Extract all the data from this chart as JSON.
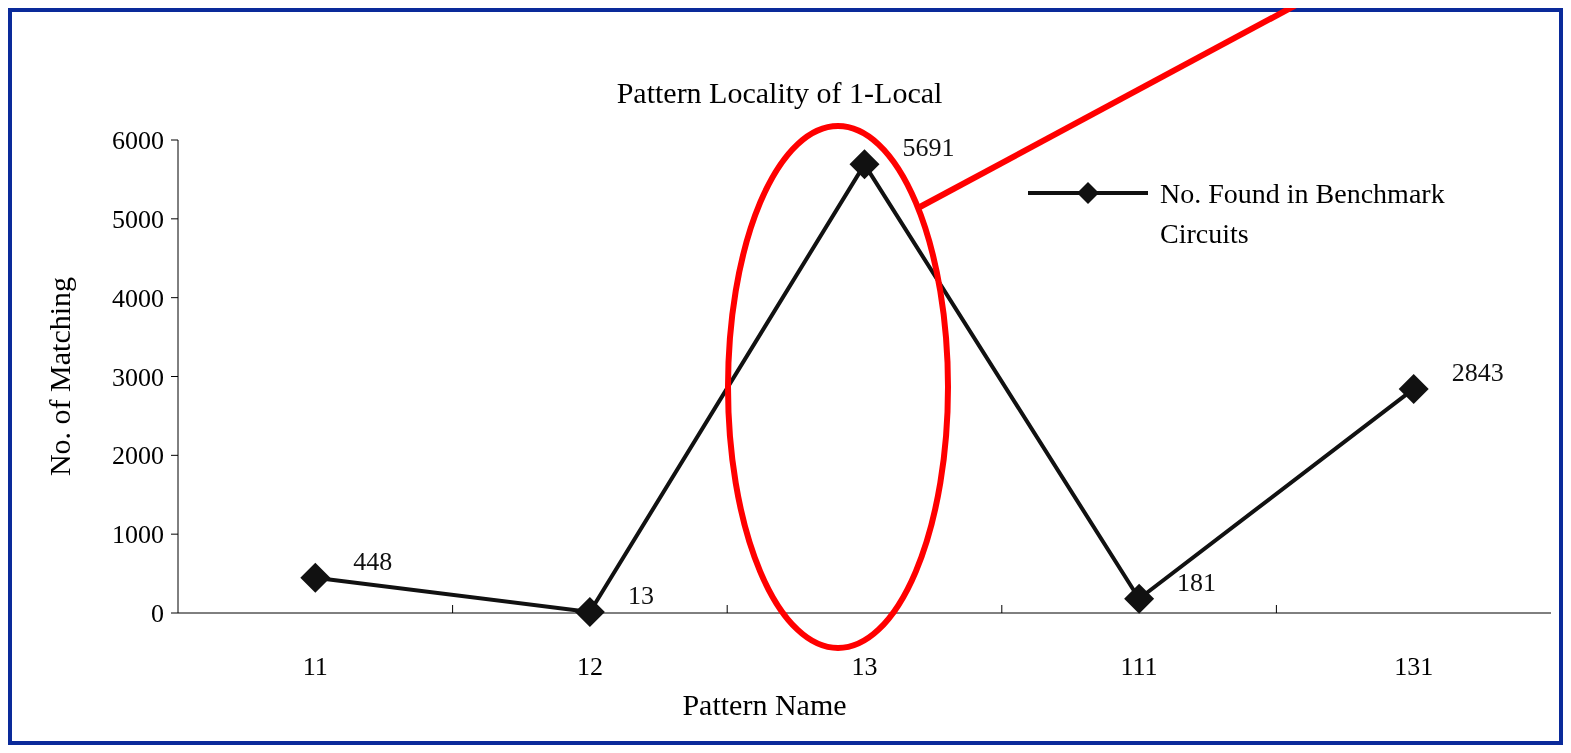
{
  "chart_data": {
    "type": "line",
    "title": "Pattern Locality of 1-Local",
    "xlabel": "Pattern Name",
    "ylabel": "No. of Matching",
    "categories": [
      "11",
      "12",
      "13",
      "111",
      "131"
    ],
    "series": [
      {
        "name": "No. Found in Benchmark Circuits",
        "color": "#111111",
        "values": [
          448,
          13,
          5691,
          181,
          2843
        ]
      }
    ],
    "ylim": [
      0,
      6000
    ],
    "yticks": [
      0,
      1000,
      2000,
      3000,
      4000,
      5000,
      6000
    ],
    "marker": "diamond",
    "line_style": "solid",
    "data_labels": true,
    "legend": "top right",
    "grid": false
  }
}
